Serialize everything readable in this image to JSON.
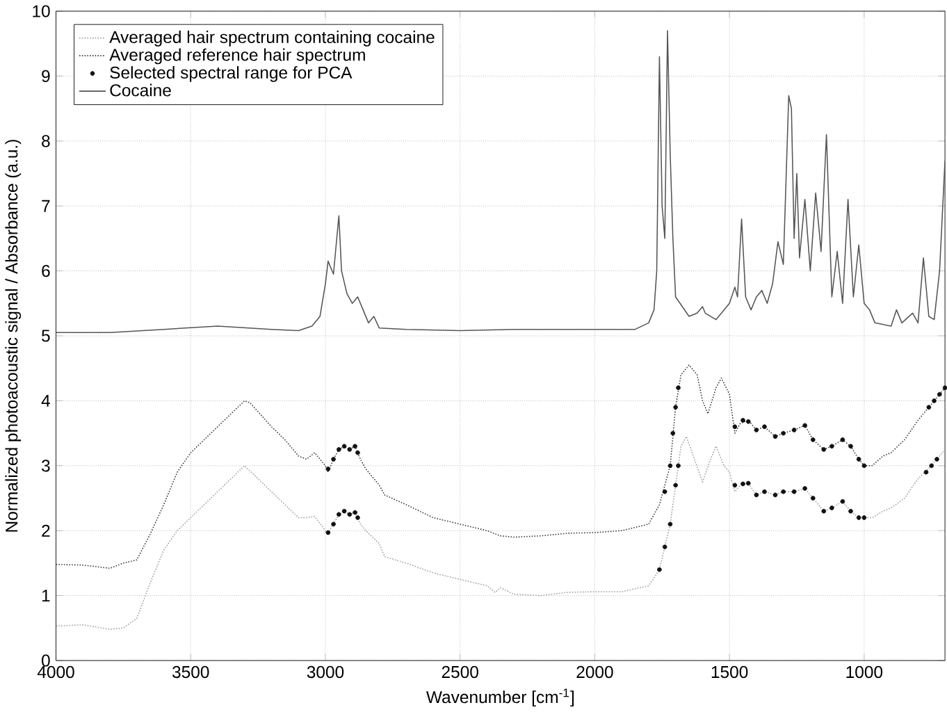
{
  "chart_data": {
    "type": "line",
    "xlabel": "Wavenumber [cm$^{-1}$]",
    "ylabel": "Normalized photoacoustic signal / Absorbance (a.u.)",
    "xlim": [
      4000,
      700
    ],
    "ylim": [
      0,
      10
    ],
    "xticks": [
      4000,
      3500,
      3000,
      2500,
      2000,
      1500,
      1000
    ],
    "yticks": [
      0,
      1,
      2,
      3,
      4,
      5,
      6,
      7,
      8,
      9,
      10
    ],
    "grid": true,
    "legend": "top left",
    "series": [
      {
        "name": "Averaged hair spectrum containing cocaine",
        "color": "#9a9a9a",
        "line_style": "dotted",
        "marker": "none",
        "x": [
          4000,
          3900,
          3800,
          3750,
          3700,
          3650,
          3600,
          3550,
          3500,
          3450,
          3400,
          3350,
          3300,
          3200,
          3150,
          3100,
          3070,
          3040,
          3000,
          2990,
          2970,
          2950,
          2930,
          2910,
          2890,
          2870,
          2850,
          2800,
          2780,
          2700,
          2600,
          2500,
          2400,
          2370,
          2350,
          2300,
          2200,
          2100,
          2000,
          1900,
          1800,
          1760,
          1720,
          1700,
          1680,
          1660,
          1630,
          1600,
          1570,
          1550,
          1520,
          1500,
          1480,
          1460,
          1430,
          1400,
          1370,
          1330,
          1300,
          1260,
          1220,
          1190,
          1150,
          1120,
          1080,
          1050,
          1020,
          1000,
          970,
          930,
          900,
          850,
          800,
          750,
          700
        ],
        "values": [
          0.53,
          0.55,
          0.48,
          0.5,
          0.65,
          1.2,
          1.7,
          2.0,
          2.2,
          2.4,
          2.6,
          2.8,
          3.0,
          2.6,
          2.4,
          2.2,
          2.2,
          2.22,
          2.0,
          1.97,
          2.1,
          2.25,
          2.3,
          2.25,
          2.28,
          2.1,
          2.0,
          1.8,
          1.6,
          1.5,
          1.35,
          1.25,
          1.15,
          1.05,
          1.12,
          1.02,
          1.0,
          1.05,
          1.06,
          1.06,
          1.15,
          1.4,
          2.1,
          2.7,
          3.3,
          3.45,
          3.1,
          2.75,
          3.1,
          3.3,
          3.0,
          2.9,
          2.6,
          2.7,
          2.73,
          2.55,
          2.6,
          2.55,
          2.6,
          2.6,
          2.65,
          2.5,
          2.3,
          2.35,
          2.45,
          2.3,
          2.2,
          2.2,
          2.2,
          2.3,
          2.35,
          2.5,
          2.8,
          3.0,
          3.25
        ]
      },
      {
        "name": "Averaged reference hair spectrum",
        "color": "#333333",
        "line_style": "dotted",
        "marker": "none",
        "x": [
          4000,
          3900,
          3800,
          3750,
          3700,
          3650,
          3600,
          3550,
          3500,
          3450,
          3400,
          3350,
          3300,
          3280,
          3200,
          3150,
          3100,
          3070,
          3040,
          3000,
          2990,
          2970,
          2950,
          2930,
          2910,
          2890,
          2870,
          2850,
          2820,
          2800,
          2780,
          2700,
          2600,
          2500,
          2400,
          2350,
          2300,
          2200,
          2100,
          2000,
          1900,
          1800,
          1760,
          1720,
          1700,
          1680,
          1650,
          1620,
          1600,
          1580,
          1550,
          1530,
          1500,
          1480,
          1460,
          1430,
          1400,
          1370,
          1330,
          1300,
          1260,
          1220,
          1190,
          1150,
          1120,
          1080,
          1050,
          1020,
          1000,
          970,
          930,
          900,
          850,
          800,
          750,
          700
        ],
        "values": [
          1.48,
          1.47,
          1.42,
          1.5,
          1.55,
          1.95,
          2.4,
          2.9,
          3.2,
          3.4,
          3.6,
          3.8,
          4.0,
          3.97,
          3.6,
          3.4,
          3.15,
          3.1,
          3.2,
          3.0,
          2.9,
          3.1,
          3.25,
          3.3,
          3.25,
          3.3,
          3.1,
          2.95,
          2.8,
          2.7,
          2.55,
          2.4,
          2.2,
          2.1,
          2.0,
          1.92,
          1.9,
          1.92,
          1.96,
          1.97,
          2.0,
          2.1,
          2.4,
          3.0,
          3.9,
          4.4,
          4.55,
          4.4,
          4.0,
          3.8,
          4.2,
          4.35,
          4.1,
          3.5,
          3.65,
          3.7,
          3.55,
          3.6,
          3.45,
          3.5,
          3.55,
          3.62,
          3.4,
          3.25,
          3.3,
          3.4,
          3.3,
          3.1,
          3.0,
          3.0,
          3.15,
          3.2,
          3.4,
          3.7,
          3.95,
          4.2
        ]
      },
      {
        "name": "Selected spectral range for PCA",
        "type": "scatter",
        "color": "#111111",
        "marker": "circle",
        "x": [
          2990,
          2970,
          2950,
          2930,
          2910,
          2890,
          2880,
          1740,
          1720,
          1710,
          1700,
          1690,
          1480,
          1450,
          1430,
          1400,
          1370,
          1330,
          1300,
          1260,
          1220,
          1190,
          1150,
          1120,
          1080,
          1050,
          1020,
          1000,
          760,
          740,
          720,
          700,
          2990,
          2970,
          2950,
          2930,
          2910,
          2890,
          2880,
          1760,
          1740,
          1720,
          1700,
          1690,
          1480,
          1450,
          1430,
          1400,
          1370,
          1330,
          1300,
          1260,
          1220,
          1190,
          1150,
          1120,
          1080,
          1050,
          1020,
          1000,
          770,
          750,
          730
        ],
        "values": [
          2.95,
          3.1,
          3.25,
          3.3,
          3.25,
          3.3,
          3.2,
          2.6,
          3.0,
          3.5,
          3.9,
          4.2,
          3.6,
          3.7,
          3.68,
          3.55,
          3.6,
          3.45,
          3.5,
          3.55,
          3.62,
          3.4,
          3.25,
          3.3,
          3.4,
          3.3,
          3.1,
          3.0,
          3.9,
          4.0,
          4.1,
          4.2,
          1.97,
          2.1,
          2.25,
          2.3,
          2.25,
          2.28,
          2.2,
          1.4,
          1.75,
          2.1,
          2.7,
          3.0,
          2.7,
          2.72,
          2.73,
          2.55,
          2.6,
          2.55,
          2.6,
          2.6,
          2.65,
          2.5,
          2.3,
          2.35,
          2.45,
          2.3,
          2.2,
          2.2,
          2.9,
          3.0,
          3.1
        ]
      },
      {
        "name": "Cocaine",
        "color": "#555555",
        "line_style": "solid",
        "marker": "none",
        "x": [
          4000,
          3800,
          3600,
          3400,
          3200,
          3100,
          3050,
          3020,
          3000,
          2990,
          2970,
          2950,
          2940,
          2920,
          2900,
          2880,
          2860,
          2840,
          2820,
          2800,
          2700,
          2500,
          2300,
          2000,
          1850,
          1800,
          1780,
          1770,
          1760,
          1750,
          1740,
          1730,
          1720,
          1710,
          1700,
          1650,
          1620,
          1600,
          1590,
          1550,
          1500,
          1480,
          1470,
          1455,
          1440,
          1420,
          1400,
          1380,
          1360,
          1340,
          1320,
          1300,
          1280,
          1270,
          1260,
          1250,
          1240,
          1220,
          1200,
          1180,
          1160,
          1140,
          1120,
          1100,
          1080,
          1060,
          1040,
          1020,
          1000,
          980,
          960,
          900,
          880,
          860,
          820,
          800,
          780,
          760,
          740,
          720,
          700
        ],
        "values": [
          5.05,
          5.05,
          5.1,
          5.15,
          5.1,
          5.08,
          5.15,
          5.3,
          5.8,
          6.15,
          5.95,
          6.85,
          6.0,
          5.65,
          5.5,
          5.6,
          5.4,
          5.2,
          5.3,
          5.12,
          5.1,
          5.08,
          5.1,
          5.1,
          5.1,
          5.2,
          5.4,
          6.0,
          9.3,
          7.0,
          6.5,
          9.7,
          7.8,
          6.5,
          5.6,
          5.3,
          5.35,
          5.45,
          5.35,
          5.25,
          5.5,
          5.75,
          5.6,
          6.8,
          5.6,
          5.4,
          5.6,
          5.7,
          5.5,
          5.8,
          6.45,
          6.1,
          8.7,
          8.5,
          6.5,
          7.5,
          6.2,
          7.1,
          6.0,
          7.2,
          6.3,
          8.1,
          5.6,
          6.3,
          5.5,
          7.1,
          5.6,
          6.4,
          5.5,
          5.4,
          5.2,
          5.15,
          5.4,
          5.2,
          5.35,
          5.2,
          6.2,
          5.3,
          5.25,
          6.0,
          7.7
        ]
      }
    ]
  }
}
